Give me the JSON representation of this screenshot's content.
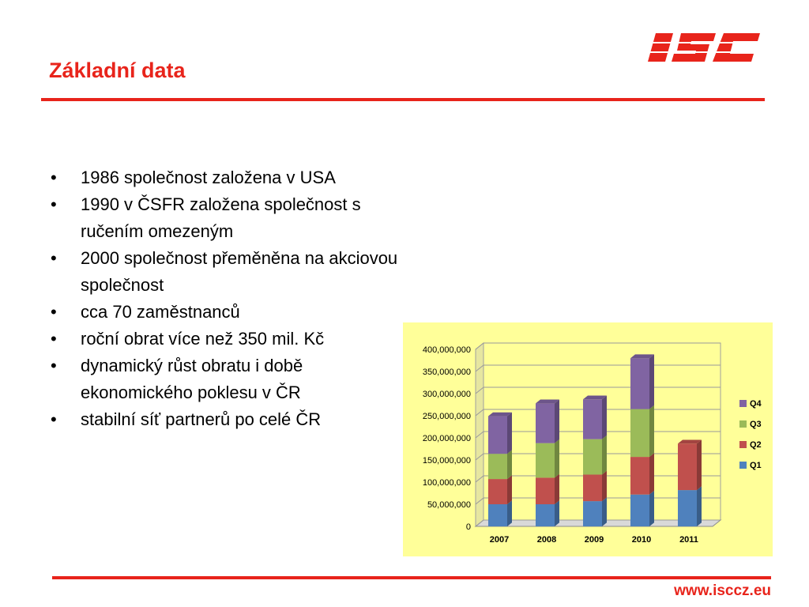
{
  "slide": {
    "title": "Základní data",
    "logo_text": "ISC",
    "footer_url": "www.isccz.eu",
    "accent_color": "#e8241b"
  },
  "bullets": [
    "1986 společnost založena v USA",
    "1990 v ČSFR založena společnost s ručením omezeným",
    "2000 společnost přeměněna na akciovou společnost",
    "cca 70 zaměstnanců",
    "roční obrat více než 350 mil. Kč",
    "dynamický růst obratu i době ekonomického poklesu v ČR",
    "stabilní síť partnerů po celé ČR"
  ],
  "chart_data": {
    "type": "bar",
    "stacked": true,
    "three_d": true,
    "background_color": "#ffff99",
    "categories": [
      "2007",
      "2008",
      "2009",
      "2010",
      "2011"
    ],
    "series": [
      {
        "name": "Q1",
        "color": "#4f81bd",
        "values": [
          50000000,
          50000000,
          57000000,
          72000000,
          82000000
        ]
      },
      {
        "name": "Q2",
        "color": "#c0504d",
        "values": [
          57000000,
          60000000,
          60000000,
          85000000,
          105000000
        ]
      },
      {
        "name": "Q3",
        "color": "#9bbb59",
        "values": [
          57000000,
          78000000,
          80000000,
          108000000,
          0
        ]
      },
      {
        "name": "Q4",
        "color": "#8064a2",
        "values": [
          85000000,
          90000000,
          90000000,
          115000000,
          0
        ]
      }
    ],
    "ylim": [
      0,
      400000000
    ],
    "yticks": [
      "0",
      "50,000,000",
      "100,000,000",
      "150,000,000",
      "200,000,000",
      "250,000,000",
      "300,000,000",
      "350,000,000",
      "400,000,000"
    ],
    "grid": true,
    "legend": "right",
    "legend_order": [
      "Q4",
      "Q3",
      "Q2",
      "Q1"
    ]
  }
}
